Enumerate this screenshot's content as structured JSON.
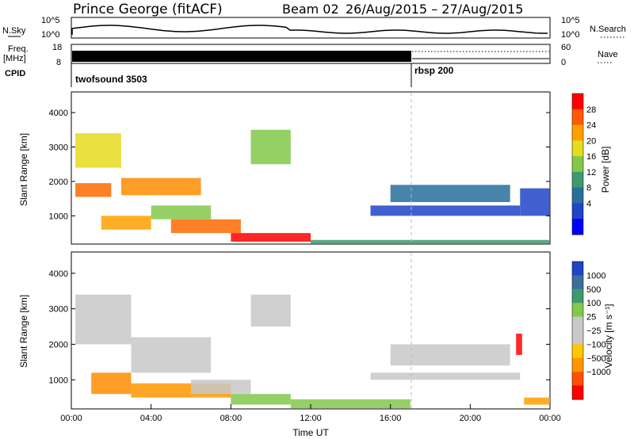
{
  "header": {
    "station": "Prince George (fitACF)",
    "beam_label": "Beam 02",
    "date_range": "26/Aug/2015 – 27/Aug/2015"
  },
  "info_panels": {
    "nsky_label": "N.Sky",
    "nsky_ticks": [
      "10^5",
      "10^0"
    ],
    "nsearch_label": "N.Search",
    "nsearch_ticks": [
      "10^5",
      "10^0"
    ],
    "freq_label": "Freq.",
    "freq_unit": "[MHz]",
    "freq_ticks": [
      "18",
      "8"
    ],
    "nave_label": "Nave",
    "nave_ticks": [
      "60",
      "0"
    ],
    "cpid_label": "CPID",
    "cpid_entries": [
      {
        "name": "twofsound 3503",
        "start_hour": 0
      },
      {
        "name": "rbsp 200",
        "start_hour": 17
      }
    ]
  },
  "chart_data": [
    {
      "type": "heatmap",
      "name": "power",
      "ylabel": "Slant Range [km]",
      "ylim": [
        180,
        4600
      ],
      "yticks": [
        1000,
        2000,
        3000,
        4000
      ],
      "xlim": [
        0,
        24
      ],
      "xticks": [
        "00:00",
        "04:00",
        "08:00",
        "12:00",
        "16:00",
        "20:00",
        "00:00"
      ],
      "colorbar": {
        "label": "Power [dB]",
        "ticks": [
          "28",
          "24",
          "20",
          "16",
          "12",
          "8",
          "4"
        ],
        "colors": [
          "#ff0000",
          "#ff5a00",
          "#ffa000",
          "#e6dc1e",
          "#82c84b",
          "#3c9a6e",
          "#286e9b",
          "#1f44c8",
          "#0000ff"
        ]
      },
      "bands": [
        {
          "t0": 0.2,
          "t1": 2.0,
          "r0": 1550,
          "r1": 1950,
          "color": "#ff6a00"
        },
        {
          "t0": 0.2,
          "t1": 2.5,
          "r0": 2400,
          "r1": 3400,
          "color": "#e6dc1e"
        },
        {
          "t0": 1.5,
          "t1": 4.0,
          "r0": 600,
          "r1": 1000,
          "color": "#ffa000"
        },
        {
          "t0": 2.5,
          "t1": 6.5,
          "r0": 1600,
          "r1": 2100,
          "color": "#ff8c00"
        },
        {
          "t0": 4.0,
          "t1": 7.0,
          "r0": 900,
          "r1": 1300,
          "color": "#82c84b"
        },
        {
          "t0": 5.0,
          "t1": 8.5,
          "r0": 500,
          "r1": 900,
          "color": "#ff6a00"
        },
        {
          "t0": 8.0,
          "t1": 12.0,
          "r0": 250,
          "r1": 500,
          "color": "#ff0000"
        },
        {
          "t0": 9.0,
          "t1": 11.0,
          "r0": 2500,
          "r1": 3500,
          "color": "#82c84b"
        },
        {
          "t0": 12.0,
          "t1": 24.0,
          "r0": 200,
          "r1": 300,
          "color": "#3c9a6e"
        },
        {
          "t0": 15.0,
          "t1": 22.5,
          "r0": 1000,
          "r1": 1300,
          "color": "#1f44c8"
        },
        {
          "t0": 16.0,
          "t1": 22.0,
          "r0": 1400,
          "r1": 1900,
          "color": "#286e9b"
        },
        {
          "t0": 22.5,
          "t1": 24.0,
          "r0": 1000,
          "r1": 1800,
          "color": "#1f44c8"
        }
      ]
    },
    {
      "type": "heatmap",
      "name": "velocity",
      "ylabel": "Slant Range [km]",
      "ylim": [
        180,
        4600
      ],
      "yticks": [
        1000,
        2000,
        3000,
        4000
      ],
      "xlim": [
        0,
        24
      ],
      "xticks": [
        "00:00",
        "04:00",
        "08:00",
        "12:00",
        "16:00",
        "20:00",
        "00:00"
      ],
      "xlabel": "Time UT",
      "colorbar": {
        "label": "Velocity [m s⁻¹]",
        "ticks": [
          "1000",
          "500",
          "100",
          "25",
          "−25",
          "−100",
          "−500",
          "−1000"
        ],
        "colors": [
          "#1f44c8",
          "#3c6e9b",
          "#3c9a6e",
          "#82c84b",
          "#c8c8c8",
          "#c8c8c8",
          "#ffc800",
          "#ff9600",
          "#ff5000",
          "#ff0000"
        ]
      },
      "bands": [
        {
          "t0": 0.2,
          "t1": 3.0,
          "r0": 2000,
          "r1": 3400,
          "color": "#c8c8c8"
        },
        {
          "t0": 1.0,
          "t1": 3.0,
          "r0": 600,
          "r1": 1200,
          "color": "#ff8c00"
        },
        {
          "t0": 3.0,
          "t1": 7.0,
          "r0": 1200,
          "r1": 2200,
          "color": "#c8c8c8"
        },
        {
          "t0": 3.0,
          "t1": 8.0,
          "r0": 500,
          "r1": 900,
          "color": "#ff9600"
        },
        {
          "t0": 6.0,
          "t1": 9.0,
          "r0": 600,
          "r1": 1000,
          "color": "#c8c8c8"
        },
        {
          "t0": 8.0,
          "t1": 11.0,
          "r0": 300,
          "r1": 600,
          "color": "#82c84b"
        },
        {
          "t0": 9.0,
          "t1": 11.0,
          "r0": 2500,
          "r1": 3400,
          "color": "#c8c8c8"
        },
        {
          "t0": 11.0,
          "t1": 17.0,
          "r0": 200,
          "r1": 450,
          "color": "#82c84b"
        },
        {
          "t0": 15.0,
          "t1": 22.5,
          "r0": 1000,
          "r1": 1200,
          "color": "#c8c8c8"
        },
        {
          "t0": 16.0,
          "t1": 22.0,
          "r0": 1400,
          "r1": 2000,
          "color": "#c8c8c8"
        },
        {
          "t0": 22.7,
          "t1": 24.0,
          "r0": 300,
          "r1": 500,
          "color": "#ffa000"
        },
        {
          "t0": 22.3,
          "t1": 22.6,
          "r0": 1700,
          "r1": 2300,
          "color": "#ff0000"
        }
      ]
    }
  ]
}
